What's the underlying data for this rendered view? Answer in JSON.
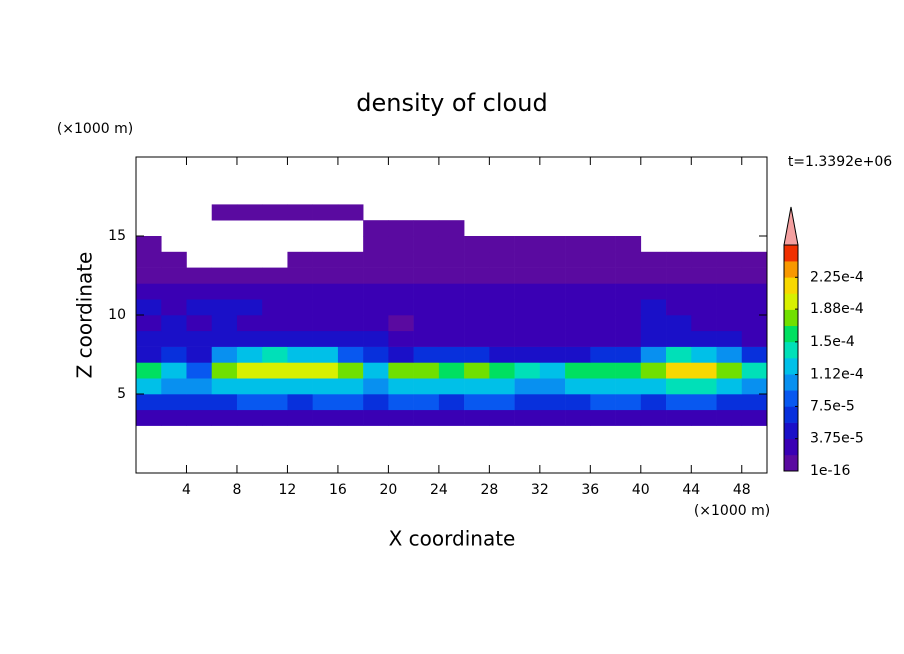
{
  "chart_data": {
    "type": "heatmap",
    "title": "density of cloud",
    "xlabel": "X coordinate",
    "ylabel": "Z coordinate",
    "xunit": "(×1000 m)",
    "yunit": "(×1000 m)",
    "annotation": "t=1.3392e+06",
    "xlim": [
      0,
      50
    ],
    "ylim": [
      0,
      20
    ],
    "xticks": [
      4,
      8,
      12,
      16,
      20,
      24,
      28,
      32,
      36,
      40,
      44,
      48
    ],
    "yticks": [
      5,
      10,
      15
    ],
    "x": [
      1,
      3,
      5,
      7,
      9,
      11,
      13,
      15,
      17,
      19,
      21,
      23,
      25,
      27,
      29,
      31,
      33,
      35,
      37,
      39,
      41,
      43,
      45,
      47,
      49
    ],
    "z": [
      3.5,
      4.5,
      5.5,
      6.5,
      7.5,
      8.5,
      9.5,
      10.5,
      11.5,
      12.5,
      13.5,
      14.5,
      15.5,
      16.5
    ],
    "values": [
      [
        2e-05,
        2e-05,
        2e-05,
        2e-05,
        2e-05,
        2e-05,
        2e-05,
        2e-05,
        2e-05,
        2e-05,
        2e-05,
        2e-05,
        2e-05,
        2e-05,
        2e-05,
        2e-05,
        2e-05,
        2e-05,
        2e-05,
        2e-05,
        2e-05,
        2e-05,
        2e-05,
        2e-05,
        2e-05
      ],
      [
        7e-05,
        7e-05,
        6e-05,
        7e-05,
        8e-05,
        8e-05,
        7e-05,
        8e-05,
        8e-05,
        7e-05,
        8e-05,
        8e-05,
        7e-05,
        8e-05,
        8e-05,
        7e-05,
        6e-05,
        7e-05,
        8e-05,
        8e-05,
        7e-05,
        8e-05,
        8e-05,
        7e-05,
        6e-05
      ],
      [
        0.00012,
        0.00011,
        0.0001,
        0.00012,
        0.00013,
        0.00013,
        0.00013,
        0.00013,
        0.00012,
        0.00011,
        0.00013,
        0.00013,
        0.00012,
        0.00013,
        0.00012,
        0.00011,
        0.0001,
        0.00012,
        0.00013,
        0.00012,
        0.00013,
        0.00014,
        0.00014,
        0.00013,
        0.00011
      ],
      [
        0.00015,
        0.00013,
        9e-05,
        0.00017,
        0.00019,
        0.0002,
        0.00019,
        0.00019,
        0.00017,
        0.00013,
        0.00017,
        0.00017,
        0.00016,
        0.00017,
        0.00016,
        0.00014,
        0.00012,
        0.00015,
        0.00016,
        0.00015,
        0.00018,
        0.00021,
        0.00021,
        0.00018,
        0.00014
      ],
      [
        5e-05,
        6e-05,
        5e-05,
        0.0001,
        0.00013,
        0.00014,
        0.00013,
        0.00012,
        9e-05,
        6e-05,
        5e-05,
        6e-05,
        6e-05,
        6e-05,
        5e-05,
        5e-05,
        5e-05,
        5e-05,
        6e-05,
        6e-05,
        0.0001,
        0.00014,
        0.00013,
        0.0001,
        6e-05
      ],
      [
        4e-05,
        5e-05,
        4e-05,
        4e-05,
        5e-05,
        4e-05,
        4e-05,
        4e-05,
        4e-05,
        4e-05,
        3e-05,
        3e-05,
        3e-05,
        3e-05,
        3e-05,
        3e-05,
        3e-05,
        3e-05,
        3e-05,
        3e-05,
        4e-05,
        5e-05,
        5e-05,
        4e-05,
        3e-05
      ],
      [
        3e-05,
        4e-05,
        3e-05,
        5e-05,
        3e-05,
        2e-05,
        2e-05,
        2e-05,
        3e-05,
        2e-05,
        1.5e-05,
        2e-05,
        2e-05,
        3e-05,
        2e-05,
        2e-05,
        2e-05,
        2e-05,
        2e-05,
        3e-05,
        4e-05,
        4e-05,
        3e-05,
        3e-05,
        2e-05
      ],
      [
        4e-05,
        3e-05,
        4e-05,
        5e-05,
        4e-05,
        3e-05,
        3e-05,
        3e-05,
        3e-05,
        3e-05,
        3e-05,
        3e-05,
        3e-05,
        3e-05,
        3e-05,
        3e-05,
        3e-05,
        3e-05,
        3e-05,
        3e-05,
        4e-05,
        3e-05,
        3e-05,
        3e-05,
        3e-05
      ],
      [
        3e-05,
        2e-05,
        2e-05,
        3e-05,
        2e-05,
        2e-05,
        2e-05,
        2e-05,
        2e-05,
        2e-05,
        2e-05,
        2e-05,
        2e-05,
        2e-05,
        2e-05,
        2e-05,
        2e-05,
        2e-05,
        2e-05,
        2e-05,
        2e-05,
        2e-05,
        2e-05,
        2e-05,
        2e-05
      ],
      [
        1e-05,
        1e-05,
        1e-05,
        1e-05,
        1e-05,
        1e-05,
        1e-05,
        1e-05,
        1e-05,
        1e-05,
        1e-05,
        1e-05,
        1e-05,
        1e-05,
        1e-05,
        1e-05,
        1e-05,
        1e-05,
        1e-05,
        1e-05,
        1e-05,
        1e-05,
        1e-05,
        1e-05,
        1e-05
      ],
      [
        1e-05,
        1e-05,
        null,
        null,
        null,
        null,
        1e-05,
        1e-05,
        1e-05,
        1e-05,
        1e-05,
        1e-05,
        1e-05,
        1e-05,
        1e-05,
        1e-05,
        1e-05,
        1e-05,
        1e-05,
        1e-05,
        1e-05,
        1e-05,
        1e-05,
        1e-05,
        1e-05
      ],
      [
        1e-05,
        null,
        null,
        null,
        null,
        null,
        null,
        null,
        null,
        1e-05,
        1e-05,
        1e-05,
        1e-05,
        1e-05,
        1e-05,
        1e-05,
        1e-05,
        1e-05,
        1e-05,
        1e-05,
        null,
        null,
        null,
        null,
        null
      ],
      [
        null,
        null,
        null,
        null,
        null,
        null,
        null,
        null,
        null,
        1e-05,
        1e-05,
        1e-05,
        1e-05,
        null,
        null,
        null,
        null,
        null,
        null,
        null,
        null,
        null,
        null,
        null,
        null
      ],
      [
        null,
        null,
        null,
        1e-05,
        1e-05,
        1e-05,
        1e-05,
        1e-05,
        1e-05,
        null,
        null,
        null,
        null,
        null,
        null,
        null,
        null,
        null,
        null,
        null,
        null,
        null,
        null,
        null,
        null
      ]
    ],
    "colorbar": {
      "clim": [
        1e-16,
        0.0002625
      ],
      "levels": [
        1e-16,
        1.875e-05,
        3.75e-05,
        5.625e-05,
        7.5e-05,
        9.375e-05,
        0.0001125,
        0.00013125,
        0.00015,
        0.00016875,
        0.0001875,
        0.00020625,
        0.000225,
        0.00024375,
        0.0002625
      ],
      "colors": [
        "#5a0aa0",
        "#3a00b4",
        "#1a10c8",
        "#0830dc",
        "#0858f0",
        "#0890f0",
        "#00c0e8",
        "#00e0b8",
        "#00e060",
        "#70e000",
        "#d8f000",
        "#f8d800",
        "#f89800",
        "#f03000"
      ],
      "extend_color": "#f4a0a0",
      "ticks": [
        {
          "value": 1e-16,
          "label": "1e-16"
        },
        {
          "value": 3.75e-05,
          "label": "3.75e-5"
        },
        {
          "value": 7.5e-05,
          "label": "7.5e-5"
        },
        {
          "value": 0.000112,
          "label": "1.12e-4"
        },
        {
          "value": 0.00015,
          "label": "1.5e-4"
        },
        {
          "value": 0.000188,
          "label": "1.88e-4"
        },
        {
          "value": 0.000225,
          "label": "2.25e-4"
        }
      ]
    }
  }
}
